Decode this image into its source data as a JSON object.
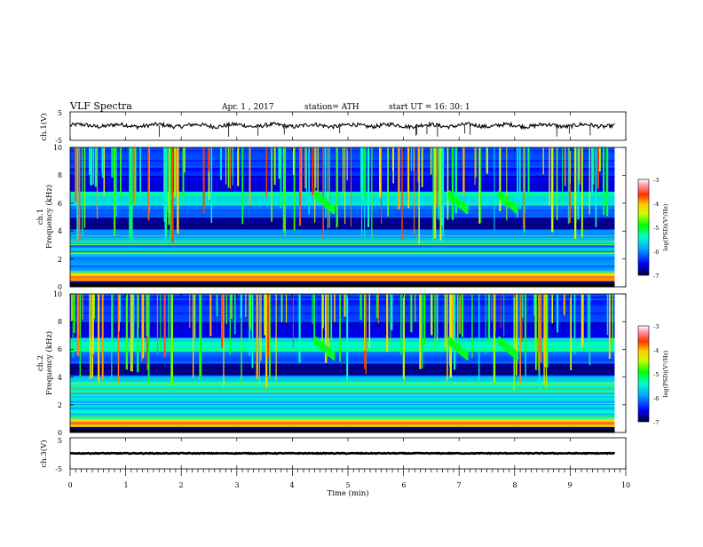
{
  "header": {
    "title": "VLF  Spectra",
    "date": "Apr. 1  , 2017",
    "station": "station= ATH",
    "start": "start  UT  =   16: 30: 1"
  },
  "panels": {
    "ch1_wave": {
      "label": "ch.1(V)",
      "yticks": [
        "5",
        "-5"
      ]
    },
    "ch1_spec": {
      "label_ch": "ch.1",
      "label_freq": "Frequency  (kHz)",
      "yticks": [
        "10",
        "8",
        "6",
        "4",
        "2",
        "0"
      ]
    },
    "ch2_spec": {
      "label_ch": "ch.2",
      "label_freq": "Frequency  (kHz)",
      "yticks": [
        "10",
        "8",
        "6",
        "4",
        "2",
        "0"
      ]
    },
    "ch3_wave": {
      "label": "ch.3(V)",
      "yticks": [
        "5",
        "-5"
      ]
    }
  },
  "xaxis": {
    "label": "Time  (min)",
    "ticks": [
      "0",
      "1",
      "2",
      "3",
      "4",
      "5",
      "6",
      "7",
      "8",
      "9",
      "10"
    ]
  },
  "colorbar": {
    "label": "log(PSD)(V²/Hz)",
    "ticks": [
      "-3",
      "-4",
      "-5",
      "-6",
      "-7"
    ],
    "colors": [
      "#000033",
      "#0000ff",
      "#00aaff",
      "#00ffcc",
      "#00ff00",
      "#ccff00",
      "#ffcc00",
      "#ff3300",
      "#ff99aa",
      "#ffffff"
    ]
  },
  "chart_data": {
    "type": "heatmap",
    "title": "VLF  Spectra",
    "xlabel": "Time  (min)",
    "xlim": [
      0,
      10
    ],
    "data_end_min": 9.8,
    "channels": [
      {
        "name": "ch.1",
        "ylabel": "Frequency  (kHz)",
        "ylim": [
          0,
          10
        ]
      },
      {
        "name": "ch.2",
        "ylabel": "Frequency  (kHz)",
        "ylim": [
          0,
          10
        ]
      }
    ],
    "waveforms": [
      {
        "name": "ch.1(V)",
        "ylim": [
          -5,
          5
        ],
        "mean_level": 0.2
      },
      {
        "name": "ch.3(V)",
        "ylim": [
          -5,
          5
        ],
        "mean_level": 0.0
      }
    ],
    "color_scale": {
      "label": "log(PSD)(V²/Hz)",
      "range": [
        -7,
        -3
      ]
    },
    "features": {
      "dark_band_khz": [
        4.2,
        5.0
      ],
      "emission_band_khz": [
        5.8,
        6.8
      ],
      "chorus_bursts_min": [
        4.4,
        6.8,
        7.7
      ]
    }
  }
}
